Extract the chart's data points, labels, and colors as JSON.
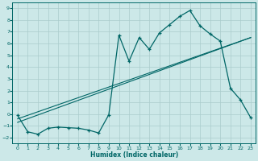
{
  "xlabel": "Humidex (Indice chaleur)",
  "bg_color": "#cce8e8",
  "line_color": "#006666",
  "grid_color": "#aacccc",
  "xlim": [
    -0.5,
    23.5
  ],
  "ylim": [
    -2.5,
    9.5
  ],
  "xticks": [
    0,
    1,
    2,
    3,
    4,
    5,
    6,
    7,
    8,
    9,
    10,
    11,
    12,
    13,
    14,
    15,
    16,
    17,
    18,
    19,
    20,
    21,
    22,
    23
  ],
  "yticks": [
    -2,
    -1,
    0,
    1,
    2,
    3,
    4,
    5,
    6,
    7,
    8,
    9
  ],
  "trend1_x": [
    0,
    23
  ],
  "trend1_y": [
    -0.7,
    6.5
  ],
  "trend2_x": [
    0,
    23
  ],
  "trend2_y": [
    -0.4,
    6.5
  ],
  "zigzag_x": [
    0,
    1,
    2,
    3,
    4,
    5,
    6,
    7,
    8,
    9,
    10,
    11,
    12,
    13,
    14,
    15,
    16,
    17,
    18,
    19,
    20,
    21,
    22,
    23
  ],
  "zigzag_y": [
    -0.1,
    -1.5,
    -1.7,
    -1.2,
    -1.1,
    -1.15,
    -1.2,
    -1.35,
    -1.6,
    -0.05,
    6.7,
    4.5,
    6.5,
    5.5,
    6.9,
    7.6,
    8.3,
    8.8,
    7.5,
    6.8,
    6.2,
    2.2,
    1.2,
    -0.3
  ]
}
